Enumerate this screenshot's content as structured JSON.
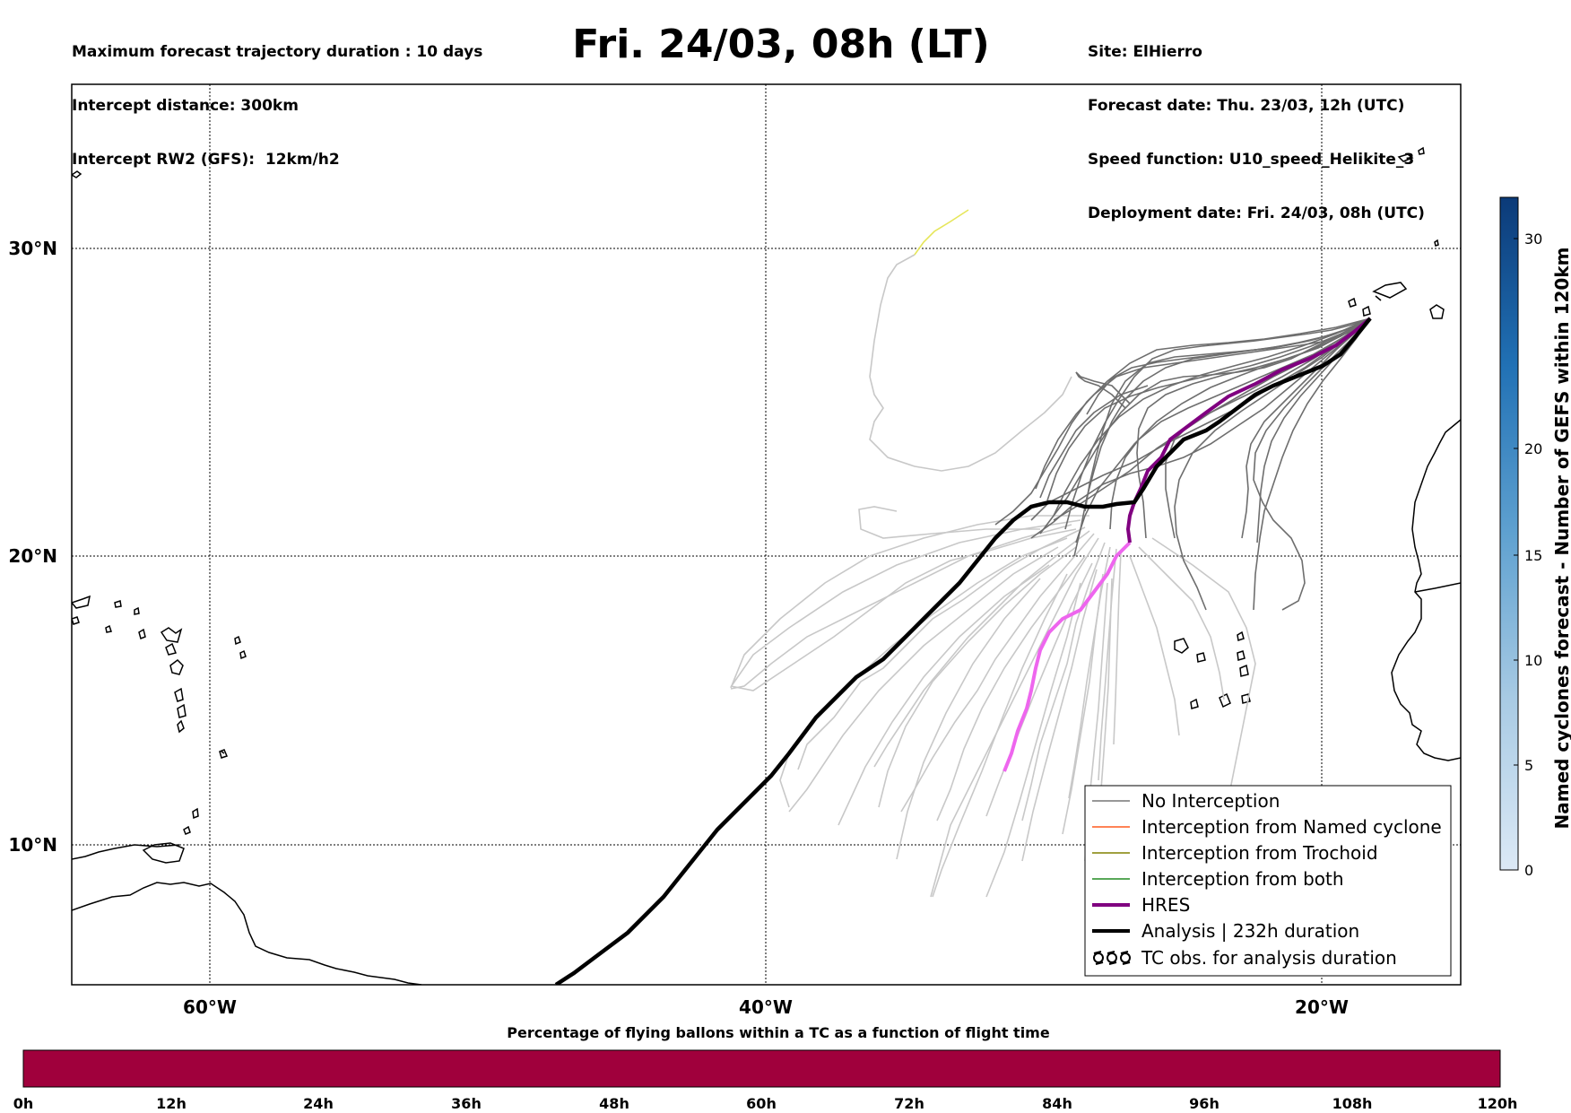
{
  "header": {
    "left": [
      "Maximum forecast trajectory duration : 10 days",
      "Intercept distance: 300km",
      "Intercept RW2 (GFS):  12km/h2"
    ],
    "title": "Fri. 24/03, 08h (LT)",
    "right": [
      "Site: ElHierro",
      "Forecast date: Thu. 23/03, 12h (UTC)",
      "Speed function: U10_speed_Helikite_3",
      "Deployment date: Fri. 24/03, 08h (UTC)"
    ]
  },
  "map": {
    "lat_labels": [
      "30°N",
      "20°N",
      "10°N"
    ],
    "lon_labels": [
      "60°W",
      "40°W",
      "20°W"
    ],
    "colors": {
      "no_interception": "#777777",
      "named_cyclone": "#ff5a1f",
      "trochoid": "#808000",
      "both": "#228b22",
      "hres": "#800080",
      "hres_late": "#ee66ee",
      "analysis": "#000000",
      "faint": "#c8c8c8"
    }
  },
  "legend": {
    "items": [
      {
        "label": "No Interception",
        "icon": "thin-gray-line"
      },
      {
        "label": "Interception from Named cyclone",
        "icon": "thin-orange-line"
      },
      {
        "label": "Interception from Trochoid",
        "icon": "thin-olive-line"
      },
      {
        "label": "Interception from both",
        "icon": "thin-green-line"
      },
      {
        "label": "HRES",
        "icon": "thick-purple-line"
      },
      {
        "label": "Analysis | 232h duration",
        "icon": "thick-black-line"
      },
      {
        "label": "TC obs. for analysis duration",
        "icon": "cyclone-symbols-icon"
      }
    ]
  },
  "colorbar": {
    "label": "Named cyclones forecast - Number of GEFS within 120km",
    "ticks": [
      "0",
      "5",
      "10",
      "15",
      "20",
      "30"
    ]
  },
  "bottom_bar": {
    "title": "Percentage of flying ballons within a TC as a function of flight time",
    "color": "#a0003c",
    "ticks": [
      "0h",
      "12h",
      "24h",
      "36h",
      "48h",
      "60h",
      "72h",
      "84h",
      "96h",
      "108h",
      "120h"
    ]
  }
}
